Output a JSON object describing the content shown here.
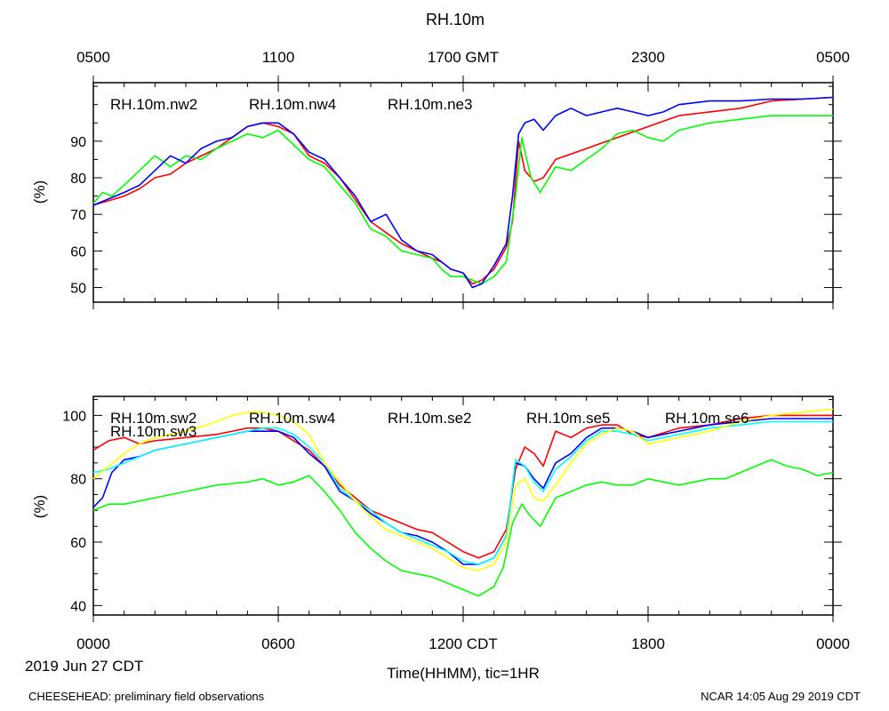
{
  "chart_data": [
    {
      "type": "line",
      "title": "RH.10m",
      "ylabel": "(%)",
      "ylim": [
        46,
        106
      ],
      "yticks": [
        50,
        60,
        70,
        80,
        90
      ],
      "xlim": [
        0,
        24
      ],
      "top_axis": {
        "ticks": [
          0,
          6,
          12,
          18,
          24
        ],
        "labels": [
          "0500",
          "1100",
          "1700 GMT",
          "2300",
          "0500"
        ]
      },
      "series": [
        {
          "name": "RH.10m.nw2",
          "color": "#ff0000",
          "x": [
            0,
            1,
            1.5,
            2,
            2.5,
            3,
            4,
            4.5,
            5,
            5.5,
            6,
            6.5,
            7,
            7.5,
            8,
            8.5,
            9,
            9.5,
            10,
            10.5,
            11,
            11.3,
            11.6,
            12,
            12.3,
            12.6,
            13,
            13.4,
            13.6,
            13.8,
            14,
            14.3,
            14.6,
            15,
            19,
            20,
            21,
            22,
            23,
            24
          ],
          "values": [
            72.5,
            75,
            77,
            80,
            81,
            84,
            88,
            91,
            94,
            95,
            94,
            92,
            86,
            84,
            80,
            74,
            68,
            65,
            62,
            60,
            58,
            57,
            55,
            54,
            51,
            52,
            55,
            61,
            68,
            90,
            82,
            79,
            80,
            85,
            97,
            98,
            99,
            101,
            101.5,
            102
          ]
        },
        {
          "name": "RH.10m.nw4",
          "color": "#00ff00",
          "x": [
            0,
            0.3,
            0.6,
            1,
            1.5,
            2,
            2.5,
            3,
            3.5,
            4,
            4.5,
            5,
            5.5,
            6,
            6.5,
            7,
            7.5,
            8,
            8.5,
            9,
            9.5,
            10,
            10.5,
            11,
            11.3,
            11.6,
            12,
            12.3,
            12.6,
            13,
            13.4,
            13.7,
            13.9,
            14.2,
            14.5,
            15,
            15.5,
            16,
            16.5,
            17,
            17.5,
            18,
            18.5,
            19,
            20,
            21,
            22,
            23,
            24
          ],
          "values": [
            73,
            76,
            75,
            78,
            82,
            86,
            83,
            86,
            85,
            88,
            90,
            92,
            91,
            93,
            89,
            85,
            83,
            78,
            73,
            66,
            64,
            60,
            59,
            58,
            55,
            53,
            53,
            52,
            51,
            53,
            57,
            75,
            91,
            80,
            76,
            83,
            82,
            85,
            88,
            92,
            93,
            91,
            90,
            93,
            95,
            96,
            97,
            97,
            97
          ]
        },
        {
          "name": "RH.10m.ne3",
          "color": "#0000ff",
          "x": [
            0,
            1,
            1.5,
            2,
            2.5,
            3,
            3.5,
            4,
            4.5,
            5,
            5.5,
            6,
            6.5,
            7,
            7.5,
            8,
            8.5,
            9,
            9.5,
            10,
            10.5,
            11,
            11.3,
            11.6,
            12,
            12.3,
            12.6,
            13,
            13.4,
            13.6,
            13.8,
            14,
            14.3,
            14.6,
            15,
            15.5,
            16,
            16.5,
            17,
            17.5,
            18,
            18.5,
            19,
            20,
            21,
            22,
            23,
            24
          ],
          "values": [
            72.5,
            76,
            78,
            82,
            86,
            84,
            88,
            90,
            91,
            94,
            95,
            95,
            92,
            87,
            85,
            80,
            75,
            68,
            70,
            63,
            60,
            59,
            57,
            55,
            54,
            50,
            51,
            56,
            62,
            75,
            92,
            95,
            96,
            93,
            97,
            99,
            97,
            98,
            99,
            98,
            97,
            98,
            100,
            101,
            101,
            101.5,
            101.5,
            102
          ]
        }
      ]
    },
    {
      "type": "line",
      "title": "",
      "ylabel": "(%)",
      "ylim": [
        37,
        106
      ],
      "yticks": [
        40,
        60,
        80,
        100
      ],
      "xlim": [
        0,
        24
      ],
      "xticks": [
        0,
        6,
        12,
        18,
        24
      ],
      "xticklabels": [
        "0000",
        "0600",
        "1200 CDT",
        "1800",
        "0000"
      ],
      "xlabel": "Time(HHMM), tic=1HR",
      "date_label": "2019 Jun 27 CDT",
      "series": [
        {
          "name": "RH.10m.sw2",
          "color": "#ff0000",
          "x": [
            0,
            0.5,
            1,
            1.5,
            2,
            3,
            4,
            5,
            5.5,
            6,
            6.5,
            7,
            7.5,
            8,
            8.5,
            9,
            9.5,
            10,
            10.5,
            11,
            11.5,
            12,
            12.5,
            13,
            13.4,
            13.7,
            14,
            14.3,
            14.6,
            15,
            15.5,
            16,
            16.5,
            17,
            17.5,
            18,
            19,
            20,
            21,
            22,
            23,
            24
          ],
          "values": [
            89,
            92,
            93,
            91,
            92,
            93,
            94,
            96,
            96,
            95,
            92,
            89,
            84,
            78,
            74,
            70,
            68,
            66,
            64,
            63,
            60,
            57,
            55,
            57,
            64,
            83,
            90,
            88,
            84,
            95,
            93,
            96,
            97,
            97,
            94,
            93,
            96,
            97,
            99,
            100,
            100,
            100
          ]
        },
        {
          "name": "RH.10m.sw3",
          "color": "#00ff00",
          "x": [
            0,
            0.5,
            1,
            1.5,
            2,
            3,
            4,
            5,
            5.5,
            6,
            6.5,
            7,
            7.5,
            8,
            8.5,
            9,
            9.5,
            10,
            10.5,
            11,
            11.5,
            12,
            12.5,
            13,
            13.3,
            13.6,
            13.9,
            14.2,
            14.5,
            15,
            15.5,
            16,
            16.5,
            17,
            17.5,
            18,
            18.5,
            19,
            19.5,
            20,
            20.5,
            21,
            21.5,
            22,
            22.5,
            23,
            23.5,
            24
          ],
          "values": [
            70,
            72,
            72,
            73,
            74,
            76,
            78,
            79,
            80,
            78,
            79,
            81,
            76,
            70,
            63,
            58,
            54,
            51,
            50,
            49,
            47,
            45,
            43,
            46,
            52,
            66,
            72,
            68,
            65,
            74,
            76,
            78,
            79,
            78,
            78,
            80,
            79,
            78,
            79,
            80,
            80,
            82,
            84,
            86,
            84,
            83,
            81,
            82
          ]
        },
        {
          "name": "RH.10m.sw4",
          "color": "#0000ff",
          "x": [
            0,
            0.3,
            0.6,
            1,
            1.5,
            2,
            2.5,
            3,
            3.5,
            4,
            4.5,
            5,
            5.5,
            6,
            6.5,
            7,
            7.5,
            8,
            8.5,
            9,
            9.5,
            10,
            10.5,
            11,
            11.5,
            12,
            12.5,
            13,
            13.4,
            13.7,
            14,
            14.3,
            14.6,
            15,
            15.5,
            16,
            16.5,
            17,
            17.5,
            18,
            19,
            20,
            21,
            22,
            23,
            24
          ],
          "values": [
            71,
            74,
            82,
            86,
            87,
            89,
            90,
            91,
            92,
            93,
            94,
            95,
            95,
            95,
            93,
            88,
            84,
            76,
            73,
            69,
            66,
            63,
            62,
            60,
            57,
            53,
            53,
            55,
            62,
            85,
            84,
            80,
            77,
            85,
            88,
            93,
            96,
            96,
            95,
            93,
            95,
            97,
            98,
            99,
            99,
            99
          ]
        },
        {
          "name": "RH.10m.se2",
          "color": "#00ffff",
          "x": [
            0,
            0.5,
            1,
            2,
            3,
            4,
            5,
            5.5,
            6,
            6.5,
            7,
            7.5,
            8,
            8.5,
            9,
            9.5,
            10,
            10.5,
            11,
            11.5,
            12,
            12.5,
            13,
            13.4,
            13.7,
            14,
            14.3,
            14.6,
            15,
            15.5,
            16,
            16.5,
            17,
            17.5,
            18,
            19,
            20,
            21,
            22,
            23,
            24
          ],
          "values": [
            82,
            83,
            85,
            89,
            91,
            93,
            95,
            96,
            96,
            94,
            90,
            85,
            77,
            73,
            70,
            66,
            63,
            61,
            59,
            57,
            54,
            53,
            55,
            62,
            86,
            84,
            79,
            76,
            83,
            87,
            92,
            95,
            95,
            94,
            92,
            94,
            96,
            97,
            98,
            98,
            98
          ]
        },
        {
          "name": "RH.10m.se5",
          "color": "#ff00ff",
          "x": [],
          "values": []
        },
        {
          "name": "RH.10m.se6",
          "color": "#ffff00",
          "x": [
            0,
            0.5,
            1,
            1.5,
            2,
            3,
            4,
            4.5,
            5,
            5.5,
            6,
            6.5,
            7,
            7.5,
            8,
            8.5,
            9,
            9.5,
            10,
            10.5,
            11,
            11.5,
            12,
            12.5,
            13,
            13.4,
            13.7,
            14,
            14.3,
            14.6,
            15,
            15.5,
            16,
            16.5,
            17,
            17.5,
            18,
            19,
            20,
            21,
            22,
            23,
            24
          ],
          "values": [
            80,
            84,
            88,
            91,
            93,
            95,
            98,
            100,
            101,
            101,
            100,
            98,
            94,
            85,
            79,
            73,
            68,
            64,
            62,
            60,
            58,
            55,
            52,
            51,
            53,
            60,
            78,
            80,
            74,
            73,
            78,
            85,
            91,
            94,
            96,
            95,
            91,
            93,
            95,
            98,
            100,
            101,
            102
          ]
        }
      ]
    }
  ],
  "footer": {
    "left": "CHEESEHEAD: preliminary field observations",
    "right": "NCAR 14:05 Aug 29 2019 CDT"
  }
}
